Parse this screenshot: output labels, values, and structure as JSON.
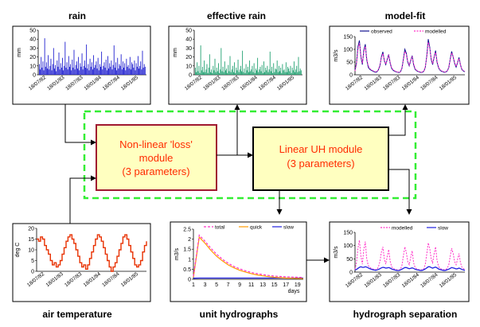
{
  "titles": {
    "rain": "rain",
    "effective_rain": "effective rain",
    "model_fit": "model-fit",
    "air_temperature": "air temperature",
    "unit_hydrographs": "unit hydrographs",
    "hydrograph_separation": "hydrograph separation"
  },
  "modules": {
    "loss": [
      "Non-linear 'loss'",
      "module",
      "(3 parameters)"
    ],
    "uh": [
      "Linear UH module",
      "(3 parameters)"
    ]
  },
  "colors": {
    "rain": "#2020d0",
    "effective_rain": "#20a070",
    "observed": "#101090",
    "modelled": "#ff30c8",
    "temperature": "#e83000",
    "quick": "#ff9900",
    "slow": "#2020e0",
    "flow_dash": "#33ee33",
    "loss_border": "#a01830",
    "box_fill": "#ffffc0"
  },
  "panels": {
    "rain": {
      "ylabel": "mm",
      "yticks": [
        "0",
        "10",
        "20",
        "30",
        "40",
        "50"
      ],
      "xticks": [
        "18/07/82",
        "18/01/83",
        "18/07/83",
        "18/01/84",
        "18/07/84",
        "18/01/85"
      ],
      "values": [
        12,
        6,
        20,
        8,
        15,
        5,
        41,
        9,
        14,
        7,
        22,
        6,
        10,
        18,
        5,
        12,
        30,
        7,
        11,
        4,
        16,
        9,
        25,
        6,
        13,
        8,
        19,
        5,
        10,
        37,
        8,
        14,
        6,
        21,
        9,
        12,
        5,
        17,
        8,
        28,
        6,
        11,
        15,
        7,
        20,
        5,
        13,
        9,
        24,
        6,
        10,
        16,
        8,
        34,
        7,
        12,
        5,
        18,
        9,
        14,
        6,
        22,
        8,
        11,
        15,
        7,
        19,
        5,
        12,
        9,
        26,
        6,
        10,
        14,
        8,
        17,
        5,
        21,
        7,
        13,
        9,
        16,
        6,
        11,
        33,
        8,
        14,
        5,
        19,
        7,
        12,
        10,
        23,
        6,
        15,
        8,
        13,
        5,
        18,
        9,
        11,
        7,
        20,
        6,
        14,
        12,
        8,
        16,
        5,
        13,
        9,
        21,
        7,
        10,
        15,
        6,
        27,
        8,
        12,
        9
      ]
    },
    "effective_rain": {
      "ylabel": "mm",
      "yticks": [
        "0",
        "10",
        "20",
        "30",
        "40",
        "50"
      ],
      "xticks": [
        "18/07/82",
        "18/01/83",
        "18/07/83",
        "18/01/84",
        "18/07/84",
        "18/01/85"
      ],
      "values": [
        8,
        3,
        14,
        4,
        10,
        2,
        33,
        5,
        9,
        3,
        16,
        3,
        6,
        12,
        2,
        8,
        23,
        3,
        6,
        2,
        10,
        5,
        18,
        3,
        8,
        4,
        13,
        2,
        6,
        30,
        4,
        9,
        3,
        15,
        5,
        7,
        2,
        11,
        4,
        21,
        3,
        6,
        10,
        3,
        14,
        2,
        8,
        5,
        17,
        3,
        6,
        10,
        4,
        27,
        3,
        7,
        2,
        12,
        5,
        9,
        3,
        16,
        4,
        6,
        10,
        3,
        13,
        2,
        7,
        5,
        19,
        3,
        6,
        9,
        4,
        11,
        2,
        15,
        3,
        8,
        5,
        10,
        3,
        6,
        26,
        4,
        9,
        2,
        13,
        3,
        7,
        6,
        16,
        3,
        10,
        4,
        8,
        2,
        12,
        5,
        6,
        3,
        14,
        3,
        9,
        7,
        4,
        10,
        2,
        8,
        5,
        15,
        3,
        6,
        10,
        3,
        20,
        4,
        7,
        5
      ]
    },
    "model_fit": {
      "ylabel": "m3/s",
      "yticks": [
        "0",
        "50",
        "100",
        "150"
      ],
      "xticks": [
        "18/07/82",
        "18/01/83",
        "18/07/83",
        "18/01/84",
        "18/07/84",
        "18/01/85"
      ],
      "legend": [
        "observed",
        "modelled"
      ],
      "observed": [
        18,
        45,
        110,
        135,
        70,
        40,
        95,
        120,
        60,
        30,
        22,
        18,
        15,
        12,
        10,
        12,
        20,
        35,
        70,
        90,
        55,
        40,
        60,
        80,
        45,
        25,
        18,
        14,
        12,
        10,
        9,
        11,
        25,
        60,
        100,
        85,
        50,
        35,
        55,
        75,
        40,
        22,
        16,
        13,
        11,
        9,
        10,
        14,
        30,
        75,
        140,
        110,
        60,
        40,
        70,
        95,
        50,
        28,
        18,
        14,
        12,
        10,
        11,
        15,
        28,
        62,
        92,
        70,
        45,
        30,
        48,
        68,
        38,
        20,
        15,
        12
      ],
      "modelled": [
        15,
        40,
        100,
        125,
        75,
        45,
        88,
        112,
        65,
        35,
        25,
        20,
        17,
        14,
        12,
        13,
        22,
        38,
        66,
        84,
        58,
        42,
        62,
        76,
        48,
        28,
        20,
        16,
        13,
        11,
        10,
        12,
        27,
        56,
        92,
        80,
        55,
        38,
        58,
        70,
        44,
        25,
        18,
        14,
        12,
        10,
        11,
        15,
        32,
        70,
        128,
        104,
        64,
        44,
        72,
        88,
        54,
        30,
        20,
        16,
        13,
        11,
        12,
        16,
        30,
        58,
        86,
        72,
        48,
        33,
        50,
        64,
        40,
        22,
        16,
        13
      ]
    },
    "air_temperature": {
      "ylabel": "deg C",
      "yticks": [
        "0",
        "5",
        "10",
        "15",
        "20"
      ],
      "xticks": [
        "18/07/82",
        "18/01/83",
        "18/07/83",
        "18/01/84",
        "18/07/84",
        "18/01/85"
      ],
      "values": [
        15,
        14,
        16,
        15,
        12,
        10,
        8,
        5,
        3,
        4,
        2,
        3,
        5,
        8,
        11,
        14,
        16,
        17,
        15,
        13,
        10,
        7,
        4,
        2,
        3,
        1,
        3,
        6,
        9,
        12,
        15,
        17,
        16,
        14,
        11,
        8,
        5,
        2,
        0,
        2,
        4,
        7,
        10,
        13,
        16,
        17,
        15,
        12,
        9,
        6,
        3,
        2,
        3,
        5,
        9,
        12,
        14
      ]
    },
    "unit_hydrographs": {
      "ylabel": "m3/s",
      "xlabel": "days",
      "yticks": [
        "0",
        "0.5",
        "1",
        "1.5",
        "2",
        "2.5"
      ],
      "xticks": [
        "1",
        "3",
        "5",
        "7",
        "9",
        "11",
        "13",
        "15",
        "17",
        "19"
      ],
      "legend": [
        "total",
        "quick",
        "slow"
      ],
      "x": [
        1,
        2,
        3,
        4,
        5,
        6,
        7,
        8,
        9,
        10,
        11,
        12,
        13,
        14,
        15,
        16,
        17,
        18,
        19,
        20
      ],
      "total": [
        0.15,
        2.2,
        1.9,
        1.55,
        1.25,
        1.0,
        0.8,
        0.64,
        0.52,
        0.42,
        0.34,
        0.28,
        0.23,
        0.19,
        0.16,
        0.14,
        0.12,
        0.11,
        0.1,
        0.09
      ],
      "quick": [
        0.1,
        2.1,
        1.8,
        1.45,
        1.15,
        0.92,
        0.72,
        0.57,
        0.45,
        0.36,
        0.28,
        0.22,
        0.17,
        0.13,
        0.1,
        0.08,
        0.06,
        0.05,
        0.04,
        0.03
      ],
      "slow": [
        0.05,
        0.06,
        0.06,
        0.06,
        0.06,
        0.06,
        0.06,
        0.06,
        0.06,
        0.06,
        0.06,
        0.06,
        0.06,
        0.06,
        0.06,
        0.06,
        0.06,
        0.06,
        0.06,
        0.06
      ]
    },
    "hydrograph_separation": {
      "ylabel": "m3/s",
      "yticks": [
        "0",
        "50",
        "100",
        "150"
      ],
      "xticks": [
        "18/07/82",
        "18/01/83",
        "18/07/83",
        "18/01/84",
        "18/07/84",
        "18/01/85"
      ],
      "legend": [
        "modelled",
        "slow"
      ],
      "modelled": [
        10,
        35,
        90,
        120,
        60,
        30,
        85,
        115,
        50,
        25,
        18,
        14,
        12,
        10,
        9,
        10,
        20,
        40,
        75,
        95,
        50,
        30,
        60,
        85,
        40,
        20,
        14,
        11,
        10,
        8,
        8,
        10,
        25,
        60,
        95,
        75,
        40,
        28,
        55,
        80,
        35,
        18,
        12,
        10,
        9,
        8,
        9,
        12,
        30,
        70,
        110,
        90,
        50,
        35,
        70,
        95,
        45,
        22,
        14,
        11,
        10,
        9,
        10,
        14,
        28,
        60,
        90,
        70,
        40,
        28,
        48,
        70,
        35,
        18,
        13,
        10
      ],
      "slow": [
        8,
        10,
        14,
        18,
        20,
        18,
        18,
        20,
        19,
        16,
        13,
        11,
        9,
        8,
        7,
        8,
        10,
        13,
        16,
        18,
        17,
        15,
        16,
        17,
        15,
        12,
        10,
        8,
        7,
        6,
        6,
        8,
        11,
        14,
        17,
        17,
        15,
        13,
        14,
        16,
        14,
        11,
        9,
        8,
        7,
        6,
        7,
        9,
        12,
        16,
        20,
        20,
        17,
        15,
        17,
        19,
        16,
        12,
        10,
        8,
        7,
        6,
        7,
        9,
        11,
        14,
        17,
        16,
        14,
        12,
        13,
        15,
        13,
        10,
        8,
        7
      ]
    }
  }
}
